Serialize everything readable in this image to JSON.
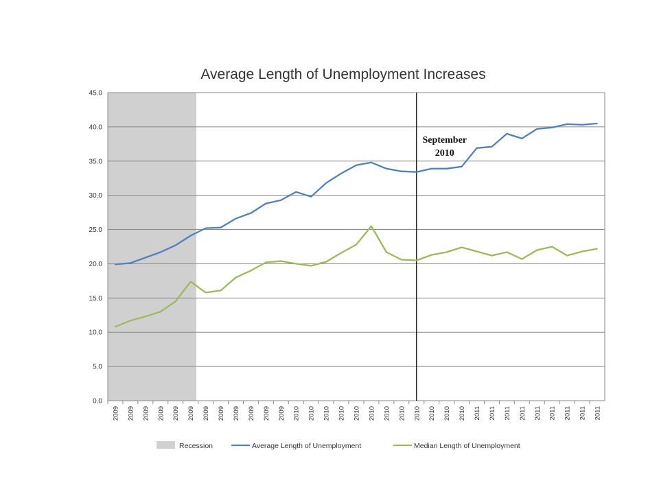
{
  "chart_data": {
    "type": "line",
    "title": "Average Length of Unemployment Increases",
    "xlabel": "",
    "ylabel": "",
    "ylim": [
      0,
      45
    ],
    "yticks": [
      "0.0",
      "5.0",
      "10.0",
      "15.0",
      "20.0",
      "25.0",
      "30.0",
      "35.0",
      "40.0",
      "45.0"
    ],
    "categories": [
      "2009",
      "2009",
      "2009",
      "2009",
      "2009",
      "2009",
      "2009",
      "2009",
      "2009",
      "2009",
      "2009",
      "2009",
      "2010",
      "2010",
      "2010",
      "2010",
      "2010",
      "2010",
      "2010",
      "2010",
      "2010",
      "2010",
      "2010",
      "2010",
      "2011",
      "2011",
      "2011",
      "2011",
      "2011",
      "2011",
      "2011",
      "2011",
      "2011"
    ],
    "grid": true,
    "legend_position": "bottom",
    "recession": {
      "name": "Recession",
      "start_index": 0,
      "end_index": 6,
      "color": "#d0d0d0"
    },
    "series": [
      {
        "name": "Average Length of Unemployment",
        "color": "#4f81bd",
        "values": [
          19.9,
          20.1,
          20.9,
          21.7,
          22.7,
          24.1,
          25.2,
          25.3,
          26.6,
          27.4,
          28.8,
          29.3,
          30.5,
          29.8,
          31.8,
          33.2,
          34.4,
          34.8,
          33.9,
          33.5,
          33.4,
          33.9,
          33.9,
          34.2,
          36.9,
          37.1,
          39.0,
          38.3,
          39.7,
          39.9,
          40.4,
          40.3,
          40.5
        ]
      },
      {
        "name": "Median Length of Unemployment",
        "color": "#9bbb59",
        "values": [
          10.8,
          11.7,
          12.3,
          13.0,
          14.5,
          17.4,
          15.8,
          16.1,
          18.0,
          19.0,
          20.2,
          20.4,
          20.0,
          19.7,
          20.3,
          21.6,
          22.8,
          25.5,
          21.7,
          20.6,
          20.5,
          21.3,
          21.7,
          22.4,
          21.8,
          21.2,
          21.7,
          20.7,
          22.0,
          22.5,
          21.2,
          21.8,
          22.2
        ]
      }
    ],
    "annotation": {
      "line1": "September",
      "line2": "2010",
      "at_index": 20
    }
  }
}
